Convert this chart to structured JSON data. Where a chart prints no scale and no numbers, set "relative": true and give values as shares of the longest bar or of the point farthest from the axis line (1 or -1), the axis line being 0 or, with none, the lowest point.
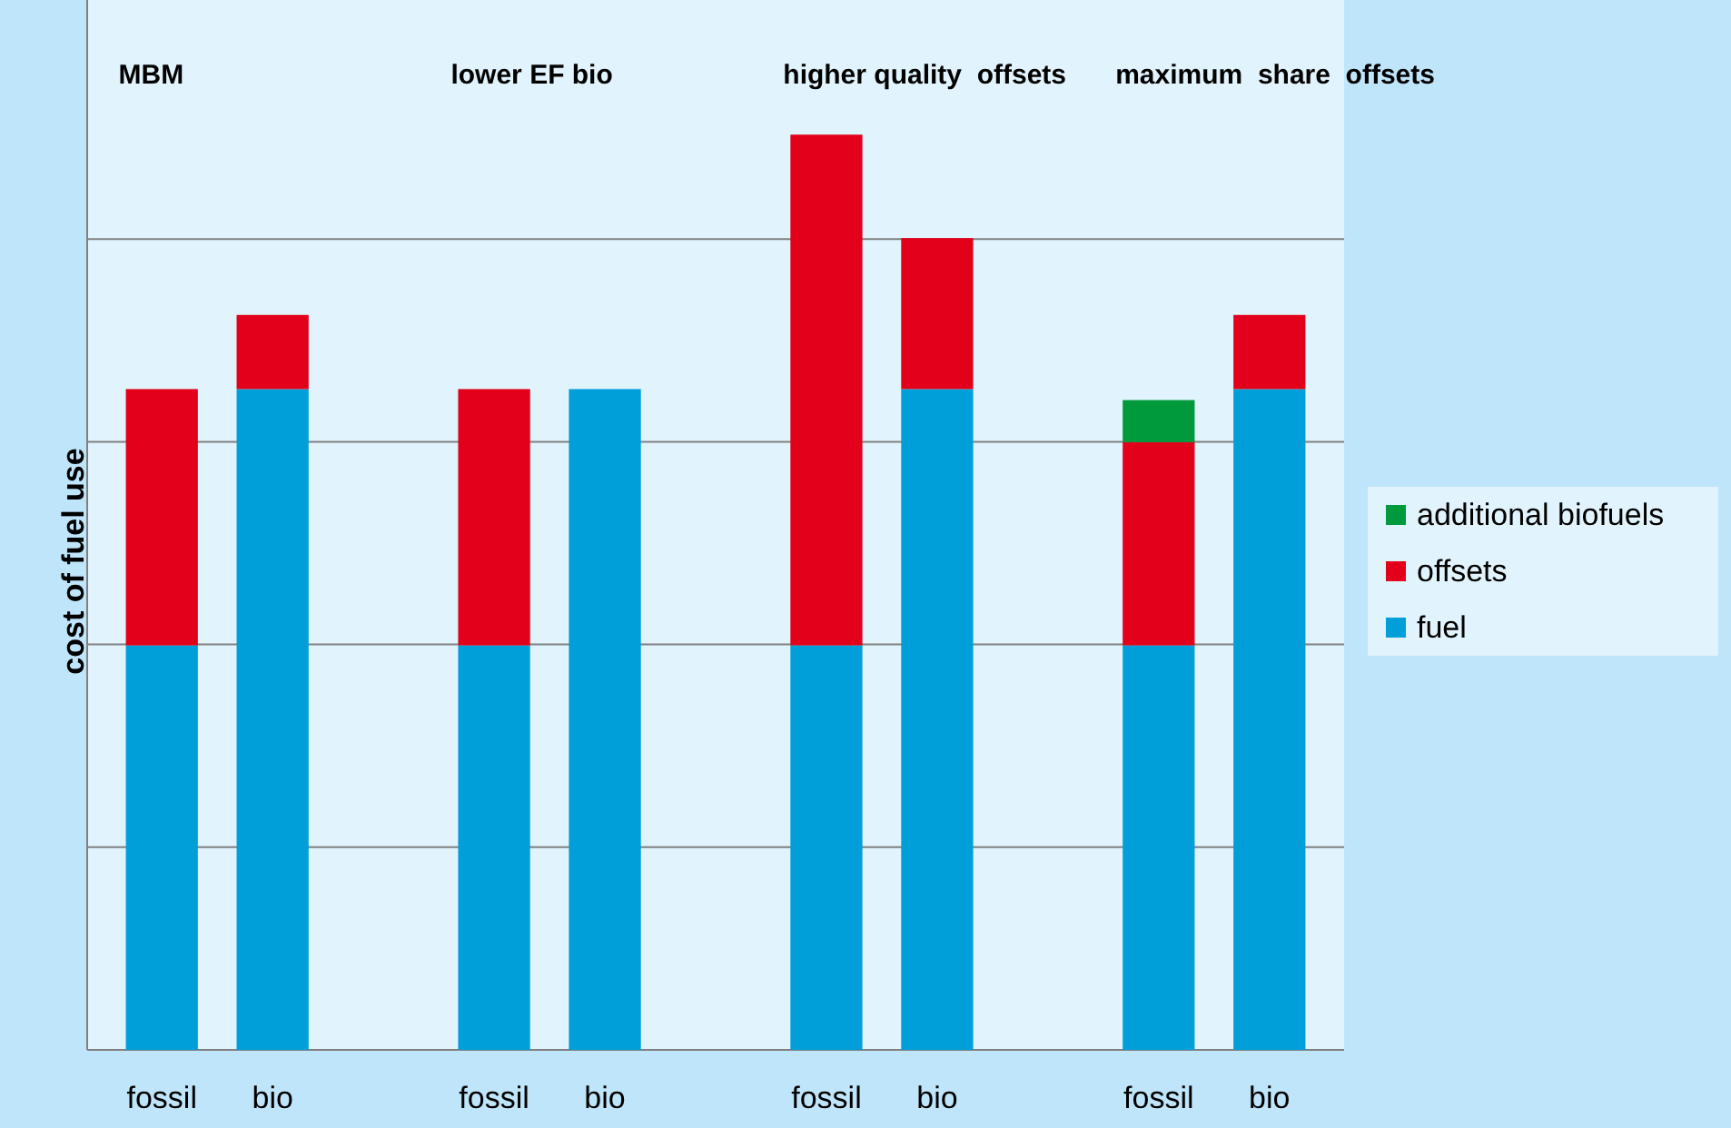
{
  "chart_data": {
    "type": "bar",
    "relative": true,
    "stacked": true,
    "ylabel": "cost of fuel use",
    "categories": [
      "fossil",
      "bio",
      "fossil",
      "bio",
      "fossil",
      "bio",
      "fossil",
      "bio"
    ],
    "series": [
      {
        "name": "fuel",
        "color": "#009fda",
        "values": [
          0.442,
          0.722,
          0.442,
          0.722,
          0.442,
          0.722,
          0.442,
          0.722
        ]
      },
      {
        "name": "offsets",
        "color": "#e2001a",
        "values": [
          0.28,
          0.081,
          0.28,
          null,
          0.558,
          0.165,
          0.222,
          0.081
        ]
      },
      {
        "name": "additional biofuels",
        "color": "#009a3d",
        "values": [
          null,
          null,
          null,
          null,
          null,
          null,
          0.046,
          null
        ]
      }
    ],
    "annotations": [
      "MBM",
      "lower EF bio",
      "higher quality  offsets",
      "maximum  share  offsets"
    ],
    "grid": true,
    "legend": "right"
  }
}
